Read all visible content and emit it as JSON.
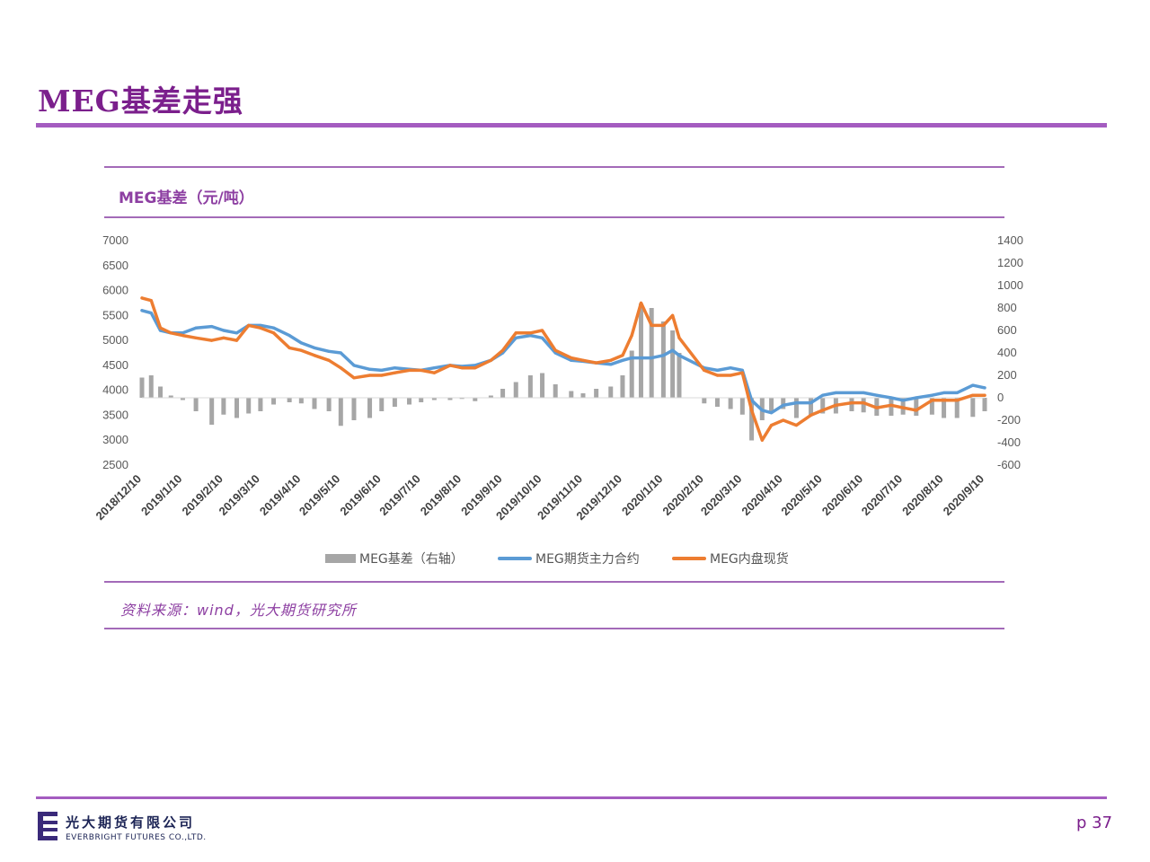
{
  "slide": {
    "title": "MEG基差走强",
    "chart_heading": "MEG基差（元/吨）",
    "source": "资料来源：wind，光大期货研究所",
    "page": "p 37"
  },
  "footer": {
    "company_cn": "光大期货有限公司",
    "company_en": "EVERBRIGHT FUTURES CO.,LTD."
  },
  "colors": {
    "accent": "#a45cc0",
    "title": "#7b1f8c",
    "basis_bar": "#a6a6a6",
    "futures_line": "#5b9bd5",
    "spot_line": "#ed7d31"
  },
  "chart_data": {
    "type": "line",
    "left_axis": {
      "range": [
        2500,
        7000
      ],
      "ticks": [
        7000,
        6500,
        6000,
        5500,
        5000,
        4500,
        4000,
        3500,
        3000,
        2500
      ]
    },
    "right_axis": {
      "range": [
        -600,
        1400
      ],
      "ticks": [
        1400,
        1200,
        1000,
        800,
        600,
        400,
        200,
        0,
        -200,
        -400,
        -600
      ]
    },
    "x_ticks": [
      "2018/12/10",
      "2019/1/10",
      "2019/2/10",
      "2019/3/10",
      "2019/4/10",
      "2019/5/10",
      "2019/6/10",
      "2019/7/10",
      "2019/8/10",
      "2019/9/10",
      "2019/10/10",
      "2019/11/10",
      "2019/12/10",
      "2020/1/10",
      "2020/2/10",
      "2020/3/10",
      "2020/4/10",
      "2020/5/10",
      "2020/6/10",
      "2020/7/10",
      "2020/8/10",
      "2020/9/10"
    ],
    "grid": false,
    "legend_position": "bottom",
    "series": [
      {
        "name": "MEG基差（右轴）",
        "type": "bar",
        "axis": "right",
        "x": [
          "2018/12/10",
          "2018/12/17",
          "2018/12/24",
          "2019/1/1",
          "2019/1/10",
          "2019/1/20",
          "2019/2/1",
          "2019/2/10",
          "2019/2/20",
          "2019/3/1",
          "2019/3/10",
          "2019/3/20",
          "2019/4/1",
          "2019/4/10",
          "2019/4/20",
          "2019/5/1",
          "2019/5/10",
          "2019/5/20",
          "2019/6/1",
          "2019/6/10",
          "2019/6/20",
          "2019/7/1",
          "2019/7/10",
          "2019/7/20",
          "2019/8/1",
          "2019/8/10",
          "2019/8/20",
          "2019/9/1",
          "2019/9/10",
          "2019/9/20",
          "2019/10/1",
          "2019/10/10",
          "2019/10/20",
          "2019/11/1",
          "2019/11/10",
          "2019/11/20",
          "2019/12/1",
          "2019/12/10",
          "2019/12/17",
          "2019/12/24",
          "2020/1/1",
          "2020/1/10",
          "2020/1/17",
          "2020/1/22",
          "2020/2/10",
          "2020/2/20",
          "2020/3/1",
          "2020/3/10",
          "2020/3/17",
          "2020/3/25",
          "2020/4/1",
          "2020/4/10",
          "2020/4/20",
          "2020/5/1",
          "2020/5/10",
          "2020/5/20",
          "2020/6/1",
          "2020/6/10",
          "2020/6/20",
          "2020/7/1",
          "2020/7/10",
          "2020/7/20",
          "2020/8/1",
          "2020/8/10",
          "2020/8/20",
          "2020/9/1",
          "2020/9/10"
        ],
        "values": [
          180,
          200,
          100,
          20,
          -20,
          -120,
          -240,
          -150,
          -180,
          -140,
          -120,
          -60,
          -40,
          -50,
          -100,
          -120,
          -250,
          -200,
          -180,
          -120,
          -80,
          -60,
          -40,
          -20,
          -20,
          -10,
          -30,
          20,
          80,
          140,
          200,
          220,
          120,
          60,
          40,
          80,
          100,
          200,
          420,
          840,
          800,
          680,
          600,
          400,
          -50,
          -80,
          -100,
          -150,
          -380,
          -200,
          -120,
          -100,
          -180,
          -160,
          -140,
          -140,
          -120,
          -130,
          -160,
          -160,
          -150,
          -160,
          -150,
          -180,
          -180,
          -170,
          -120
        ]
      },
      {
        "name": "MEG期货主力合约",
        "axis": "left",
        "x": [
          "2018/12/10",
          "2018/12/17",
          "2018/12/24",
          "2019/1/1",
          "2019/1/10",
          "2019/1/20",
          "2019/2/1",
          "2019/2/10",
          "2019/2/20",
          "2019/3/1",
          "2019/3/10",
          "2019/3/20",
          "2019/4/1",
          "2019/4/10",
          "2019/4/20",
          "2019/5/1",
          "2019/5/10",
          "2019/5/20",
          "2019/6/1",
          "2019/6/10",
          "2019/6/20",
          "2019/7/1",
          "2019/7/10",
          "2019/7/20",
          "2019/8/1",
          "2019/8/10",
          "2019/8/20",
          "2019/9/1",
          "2019/9/10",
          "2019/9/20",
          "2019/10/1",
          "2019/10/10",
          "2019/10/20",
          "2019/11/1",
          "2019/11/10",
          "2019/11/20",
          "2019/12/1",
          "2019/12/10",
          "2019/12/17",
          "2019/12/24",
          "2020/1/1",
          "2020/1/10",
          "2020/1/17",
          "2020/1/22",
          "2020/2/10",
          "2020/2/20",
          "2020/3/1",
          "2020/3/10",
          "2020/3/17",
          "2020/3/25",
          "2020/4/1",
          "2020/4/10",
          "2020/4/20",
          "2020/5/1",
          "2020/5/10",
          "2020/5/20",
          "2020/6/1",
          "2020/6/10",
          "2020/6/20",
          "2020/7/1",
          "2020/7/10",
          "2020/7/20",
          "2020/8/1",
          "2020/8/10",
          "2020/8/20",
          "2020/9/1",
          "2020/9/10"
        ],
        "values": [
          5600,
          5550,
          5200,
          5150,
          5150,
          5250,
          5280,
          5200,
          5150,
          5300,
          5300,
          5250,
          5100,
          4950,
          4850,
          4780,
          4750,
          4500,
          4420,
          4400,
          4450,
          4420,
          4400,
          4450,
          4500,
          4480,
          4500,
          4600,
          4750,
          5050,
          5100,
          5050,
          4750,
          4600,
          4580,
          4550,
          4520,
          4600,
          4650,
          4650,
          4650,
          4700,
          4800,
          4700,
          4450,
          4400,
          4450,
          4400,
          3800,
          3600,
          3550,
          3700,
          3750,
          3750,
          3900,
          3950,
          3950,
          3950,
          3900,
          3850,
          3800,
          3850,
          3900,
          3950,
          3950,
          4100,
          4050
        ]
      },
      {
        "name": "MEG内盘现货",
        "axis": "left",
        "x": [
          "2018/12/10",
          "2018/12/17",
          "2018/12/24",
          "2019/1/1",
          "2019/1/10",
          "2019/1/20",
          "2019/2/1",
          "2019/2/10",
          "2019/2/20",
          "2019/3/1",
          "2019/3/10",
          "2019/3/20",
          "2019/4/1",
          "2019/4/10",
          "2019/4/20",
          "2019/5/1",
          "2019/5/10",
          "2019/5/20",
          "2019/6/1",
          "2019/6/10",
          "2019/6/20",
          "2019/7/1",
          "2019/7/10",
          "2019/7/20",
          "2019/8/1",
          "2019/8/10",
          "2019/8/20",
          "2019/9/1",
          "2019/9/10",
          "2019/9/20",
          "2019/10/1",
          "2019/10/10",
          "2019/10/20",
          "2019/11/1",
          "2019/11/10",
          "2019/11/20",
          "2019/12/1",
          "2019/12/10",
          "2019/12/17",
          "2019/12/24",
          "2020/1/1",
          "2020/1/10",
          "2020/1/17",
          "2020/1/22",
          "2020/2/10",
          "2020/2/20",
          "2020/3/1",
          "2020/3/10",
          "2020/3/17",
          "2020/3/25",
          "2020/4/1",
          "2020/4/10",
          "2020/4/20",
          "2020/5/1",
          "2020/5/10",
          "2020/5/20",
          "2020/6/1",
          "2020/6/10",
          "2020/6/20",
          "2020/7/1",
          "2020/7/10",
          "2020/7/20",
          "2020/8/1",
          "2020/8/10",
          "2020/8/20",
          "2020/9/1",
          "2020/9/10"
        ],
        "values": [
          5850,
          5800,
          5250,
          5150,
          5100,
          5050,
          5000,
          5050,
          5000,
          5300,
          5250,
          5150,
          4850,
          4800,
          4700,
          4600,
          4450,
          4250,
          4300,
          4300,
          4350,
          4400,
          4400,
          4350,
          4500,
          4450,
          4450,
          4600,
          4800,
          5150,
          5150,
          5200,
          4800,
          4650,
          4600,
          4550,
          4600,
          4700,
          5100,
          5750,
          5300,
          5300,
          5500,
          5050,
          4400,
          4300,
          4300,
          4350,
          3600,
          3000,
          3300,
          3400,
          3300,
          3500,
          3600,
          3700,
          3750,
          3750,
          3650,
          3700,
          3650,
          3600,
          3800,
          3800,
          3800,
          3900,
          3900
        ]
      }
    ]
  }
}
